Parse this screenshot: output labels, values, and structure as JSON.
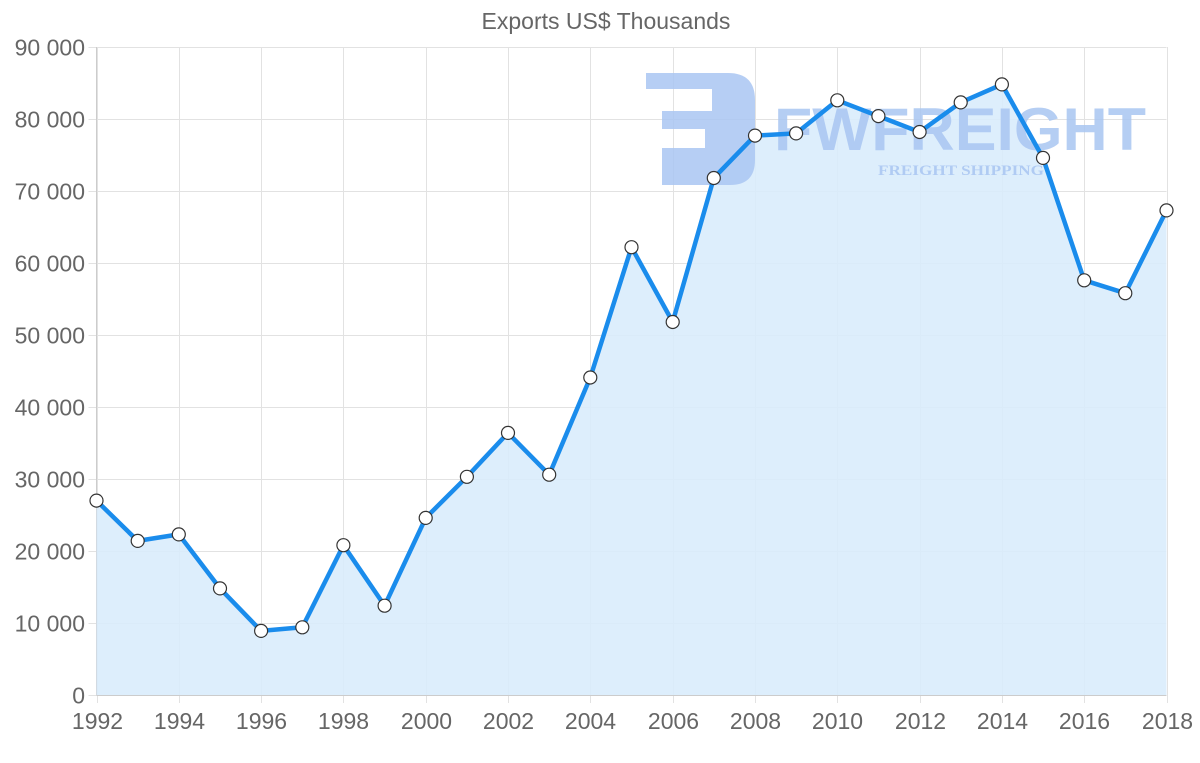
{
  "chart_data": {
    "type": "area",
    "title": "Exports US$ Thousands",
    "xlabel": "",
    "ylabel": "",
    "x": [
      1992,
      1993,
      1994,
      1995,
      1996,
      1997,
      1998,
      1999,
      2000,
      2001,
      2002,
      2003,
      2004,
      2005,
      2006,
      2007,
      2008,
      2009,
      2010,
      2011,
      2012,
      2013,
      2014,
      2015,
      2016,
      2017,
      2018
    ],
    "series": [
      {
        "name": "Exports US$ Thousands",
        "values": [
          27000,
          21400,
          22300,
          14800,
          8900,
          9400,
          20800,
          12400,
          24600,
          30300,
          36400,
          30600,
          44100,
          62200,
          51800,
          71800,
          77700,
          78000,
          82600,
          80400,
          78200,
          82300,
          84800,
          74600,
          57600,
          55800,
          67300
        ]
      }
    ],
    "x_tick_labels": [
      "1992",
      "1994",
      "1996",
      "1998",
      "2000",
      "2002",
      "2004",
      "2006",
      "2008",
      "2010",
      "2012",
      "2014",
      "2016",
      "2018"
    ],
    "y_tick_labels": [
      "0",
      "10 000",
      "20 000",
      "30 000",
      "40 000",
      "50 000",
      "60 000",
      "70 000",
      "80 000",
      "90 000"
    ],
    "y_ticks": [
      0,
      10000,
      20000,
      30000,
      40000,
      50000,
      60000,
      70000,
      80000,
      90000
    ],
    "xlim": [
      1992,
      2018
    ],
    "ylim": [
      0,
      90000
    ],
    "grid": true,
    "legend": null
  },
  "colors": {
    "line": "#1a8cec",
    "fill": "#d9ecfc",
    "point_fill": "#ffffff",
    "point_stroke": "#333333",
    "grid": "#e2e2e2",
    "axis": "#cccccc",
    "text": "#666666",
    "watermark": "#a9c6f2"
  },
  "watermark": {
    "brand": "FWFREIGHT",
    "tagline": "FREIGHT SHIPPING"
  }
}
